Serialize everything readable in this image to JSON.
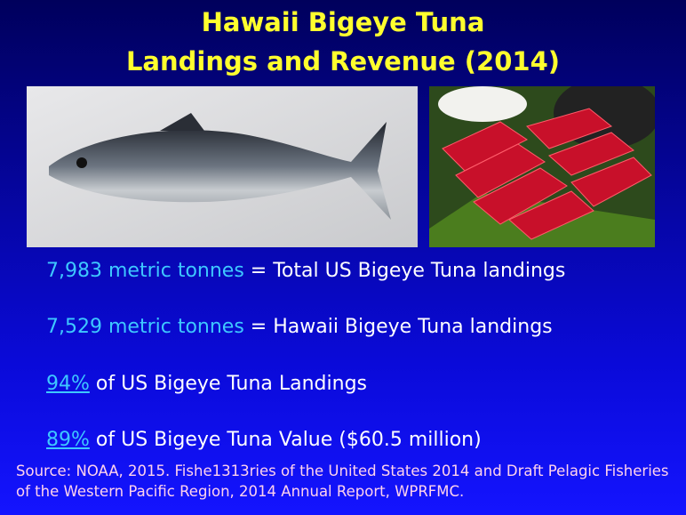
{
  "title": [
    "Hawaii Bigeye Tuna",
    "Landings and Revenue (2014)"
  ],
  "lines": [
    {
      "highlight": "7,983 metric tonnes",
      "rest": " = Total US Bigeye Tuna landings"
    },
    {
      "highlight": "7,529 metric tonnes",
      "rest": " = Hawaii Bigeye Tuna landings"
    },
    {
      "highlight": "94%",
      "rest": " of US Bigeye Tuna Landings"
    },
    {
      "highlight": "89%",
      "rest": " of US Bigeye Tuna Value ($60.5 million)"
    }
  ],
  "source": "Source: NOAA, 2015. Fishe1313ries of the United States 2014 and Draft Pelagic Fisheries of the Western Pacific Region, 2014 Annual Report, WPRFMC."
}
